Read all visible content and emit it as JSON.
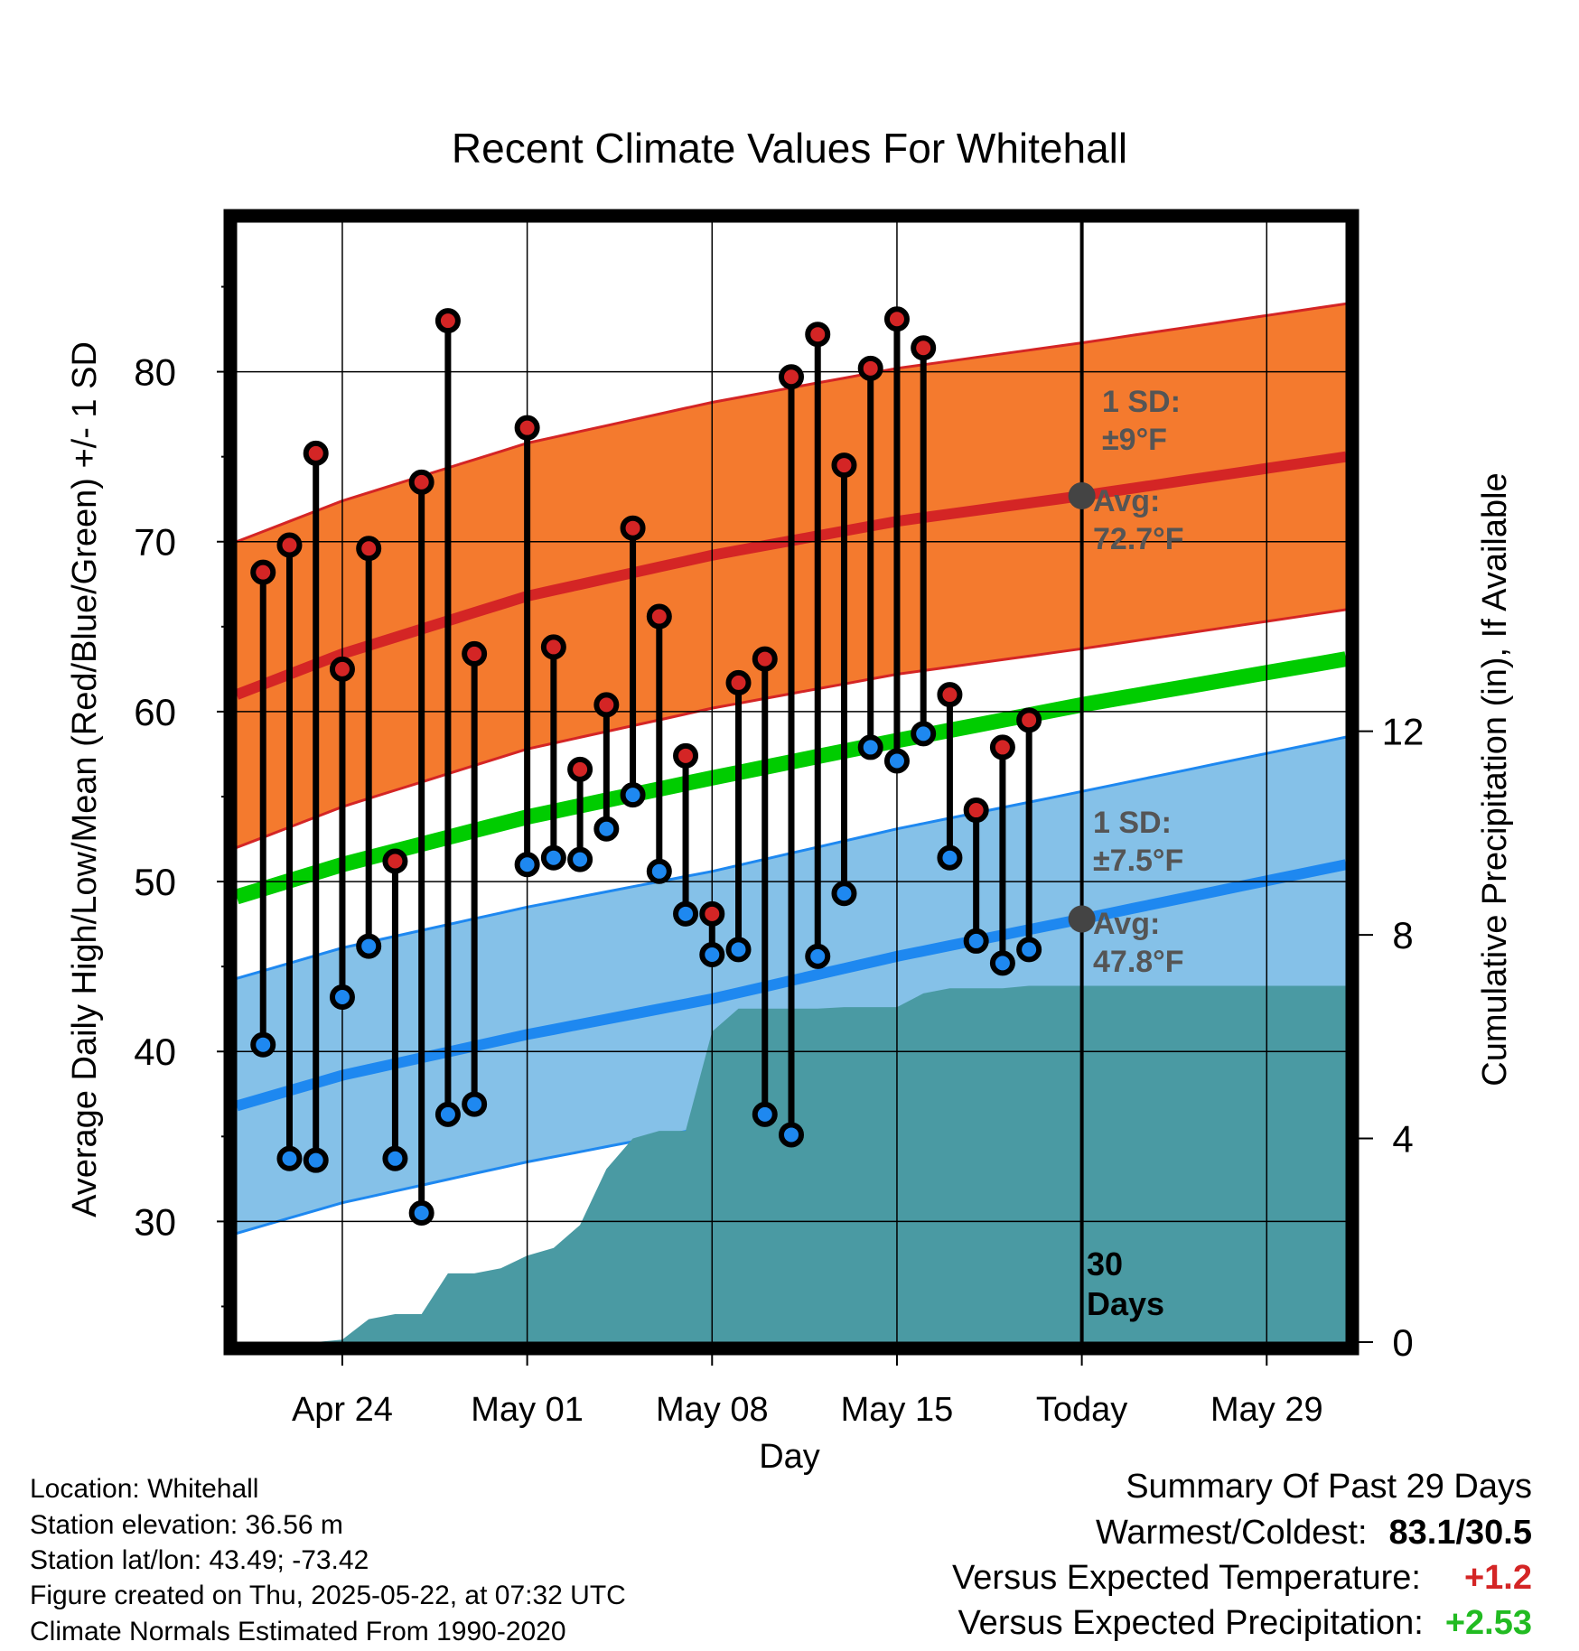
{
  "chart_data": {
    "type": "line",
    "title": "Recent Climate Values For Whitehall",
    "xlabel": "Day",
    "ylabel_left": "Average Daily High/Low/Mean (Red/Blue/Green) +/- 1 SD",
    "ylabel_right": "Cumulative Precipitation (in), If Available",
    "x_tick_labels": [
      "Apr 24",
      "May 01",
      "May 08",
      "May 15",
      "Today",
      "May 29"
    ],
    "y_ticks_left": [
      "30",
      "40",
      "50",
      "60",
      "70",
      "80"
    ],
    "y_ticks_right": [
      "0",
      "4",
      "8",
      "12"
    ],
    "ylim_left": [
      22.9,
      88.8
    ],
    "ylim_right": [
      0,
      22
    ],
    "x_start_date": "2025-04-20",
    "x_end_date": "2025-06-01",
    "today": "2025-05-22",
    "grid": true,
    "daily_high": [
      {
        "date": "2025-04-21",
        "value": 68.2
      },
      {
        "date": "2025-04-22",
        "value": 69.8
      },
      {
        "date": "2025-04-23",
        "value": 75.2
      },
      {
        "date": "2025-04-24",
        "value": 62.5
      },
      {
        "date": "2025-04-25",
        "value": 69.6
      },
      {
        "date": "2025-04-26",
        "value": 51.2
      },
      {
        "date": "2025-04-27",
        "value": 73.5
      },
      {
        "date": "2025-04-28",
        "value": 83.0
      },
      {
        "date": "2025-04-29",
        "value": 63.4
      },
      {
        "date": "2025-05-01",
        "value": 76.7
      },
      {
        "date": "2025-05-02",
        "value": 63.8
      },
      {
        "date": "2025-05-03",
        "value": 56.6
      },
      {
        "date": "2025-05-04",
        "value": 60.4
      },
      {
        "date": "2025-05-05",
        "value": 70.8
      },
      {
        "date": "2025-05-06",
        "value": 65.6
      },
      {
        "date": "2025-05-07",
        "value": 57.4
      },
      {
        "date": "2025-05-08",
        "value": 48.1
      },
      {
        "date": "2025-05-09",
        "value": 61.7
      },
      {
        "date": "2025-05-10",
        "value": 63.1
      },
      {
        "date": "2025-05-11",
        "value": 79.7
      },
      {
        "date": "2025-05-12",
        "value": 82.2
      },
      {
        "date": "2025-05-13",
        "value": 74.5
      },
      {
        "date": "2025-05-14",
        "value": 80.2
      },
      {
        "date": "2025-05-15",
        "value": 83.1
      },
      {
        "date": "2025-05-16",
        "value": 81.4
      },
      {
        "date": "2025-05-17",
        "value": 61.0
      },
      {
        "date": "2025-05-18",
        "value": 54.2
      },
      {
        "date": "2025-05-19",
        "value": 57.9
      },
      {
        "date": "2025-05-20",
        "value": 59.5
      }
    ],
    "daily_low": [
      {
        "date": "2025-04-21",
        "value": 40.4
      },
      {
        "date": "2025-04-22",
        "value": 33.7
      },
      {
        "date": "2025-04-23",
        "value": 33.6
      },
      {
        "date": "2025-04-24",
        "value": 43.2
      },
      {
        "date": "2025-04-25",
        "value": 46.2
      },
      {
        "date": "2025-04-26",
        "value": 33.7
      },
      {
        "date": "2025-04-27",
        "value": 30.5
      },
      {
        "date": "2025-04-28",
        "value": 36.3
      },
      {
        "date": "2025-04-29",
        "value": 36.9
      },
      {
        "date": "2025-05-01",
        "value": 51.0
      },
      {
        "date": "2025-05-02",
        "value": 51.4
      },
      {
        "date": "2025-05-03",
        "value": 51.3
      },
      {
        "date": "2025-05-04",
        "value": 53.1
      },
      {
        "date": "2025-05-05",
        "value": 55.1
      },
      {
        "date": "2025-05-06",
        "value": 50.6
      },
      {
        "date": "2025-05-07",
        "value": 48.1
      },
      {
        "date": "2025-05-08",
        "value": 45.7
      },
      {
        "date": "2025-05-09",
        "value": 46.0
      },
      {
        "date": "2025-05-10",
        "value": 36.3
      },
      {
        "date": "2025-05-11",
        "value": 35.1
      },
      {
        "date": "2025-05-12",
        "value": 45.6
      },
      {
        "date": "2025-05-13",
        "value": 49.3
      },
      {
        "date": "2025-05-14",
        "value": 57.9
      },
      {
        "date": "2025-05-15",
        "value": 57.1
      },
      {
        "date": "2025-05-16",
        "value": 58.7
      },
      {
        "date": "2025-05-17",
        "value": 51.4
      },
      {
        "date": "2025-05-18",
        "value": 46.5
      },
      {
        "date": "2025-05-19",
        "value": 45.2
      },
      {
        "date": "2025-05-20",
        "value": 46.0
      }
    ],
    "normal_high": {
      "x": [
        "2025-04-20",
        "2025-04-24",
        "2025-05-01",
        "2025-05-08",
        "2025-05-15",
        "2025-05-22",
        "2025-06-01"
      ],
      "y": [
        61.0,
        63.4,
        66.8,
        69.2,
        71.2,
        72.7,
        75.0
      ]
    },
    "normal_high_sd": 9,
    "normal_mean": {
      "x": [
        "2025-04-20",
        "2025-04-24",
        "2025-05-01",
        "2025-05-08",
        "2025-05-15",
        "2025-05-22",
        "2025-06-01"
      ],
      "y": [
        49.1,
        51.0,
        53.8,
        56.1,
        58.3,
        60.4,
        63.1
      ]
    },
    "normal_low": {
      "x": [
        "2025-04-20",
        "2025-04-24",
        "2025-05-01",
        "2025-05-08",
        "2025-05-15",
        "2025-05-22",
        "2025-06-01"
      ],
      "y": [
        36.8,
        38.6,
        41.0,
        43.1,
        45.6,
        47.8,
        51.0
      ]
    },
    "normal_low_sd": 7.5,
    "cumulative_precip": [
      {
        "date": "2025-04-20",
        "value": 0
      },
      {
        "date": "2025-04-22",
        "value": 0
      },
      {
        "date": "2025-04-23",
        "value": 0
      },
      {
        "date": "2025-04-24",
        "value": 0.05
      },
      {
        "date": "2025-04-25",
        "value": 0.45
      },
      {
        "date": "2025-04-26",
        "value": 0.55
      },
      {
        "date": "2025-04-27",
        "value": 0.55
      },
      {
        "date": "2025-04-28",
        "value": 1.35
      },
      {
        "date": "2025-04-29",
        "value": 1.35
      },
      {
        "date": "2025-04-30",
        "value": 1.45
      },
      {
        "date": "2025-05-01",
        "value": 1.7
      },
      {
        "date": "2025-05-02",
        "value": 1.85
      },
      {
        "date": "2025-05-03",
        "value": 2.3
      },
      {
        "date": "2025-05-04",
        "value": 3.4
      },
      {
        "date": "2025-05-05",
        "value": 4.0
      },
      {
        "date": "2025-05-06",
        "value": 4.15
      },
      {
        "date": "2025-05-07",
        "value": 4.15
      },
      {
        "date": "2025-05-08",
        "value": 6.1
      },
      {
        "date": "2025-05-09",
        "value": 6.55
      },
      {
        "date": "2025-05-10",
        "value": 6.55
      },
      {
        "date": "2025-05-11",
        "value": 6.55
      },
      {
        "date": "2025-05-12",
        "value": 6.55
      },
      {
        "date": "2025-05-13",
        "value": 6.58
      },
      {
        "date": "2025-05-14",
        "value": 6.58
      },
      {
        "date": "2025-05-15",
        "value": 6.58
      },
      {
        "date": "2025-05-16",
        "value": 6.85
      },
      {
        "date": "2025-05-17",
        "value": 6.95
      },
      {
        "date": "2025-05-18",
        "value": 6.95
      },
      {
        "date": "2025-05-19",
        "value": 6.95
      },
      {
        "date": "2025-05-20",
        "value": 7.0
      },
      {
        "date": "2025-05-22",
        "value": 7.0
      },
      {
        "date": "2025-06-01",
        "value": 7.0
      }
    ],
    "annotations": {
      "high_sd_label_line1": "1 SD:",
      "high_sd_label_line2": "±9°F",
      "high_avg_label_line1": "Avg:",
      "high_avg_label_line2": "72.7°F",
      "low_sd_label_line1": "1 SD:",
      "low_sd_label_line2": "±7.5°F",
      "low_avg_label_line1": "Avg:",
      "low_avg_label_line2": "47.8°F",
      "days_label_line1": "30",
      "days_label_line2": "Days"
    },
    "colors": {
      "high_band": "#f47a2e",
      "high_line": "#d42525",
      "low_band": "#85c1e8",
      "low_line": "#1e88f0",
      "mean_line": "#00cc00",
      "precip": "#4a9aa3",
      "high_marker": "#d42525",
      "low_marker": "#1e88f0",
      "annotation_text": "#555555",
      "avg_dot": "#444444"
    }
  },
  "info": {
    "location": "Location: Whitehall",
    "elevation": "Station elevation: 36.56 m",
    "latlon": "Station lat/lon: 43.49; -73.42",
    "created": "Figure created on Thu, 2025-05-22, at 07:32 UTC",
    "normals": "Climate Normals Estimated From 1990-2020"
  },
  "summary": {
    "title": "Summary Of Past 29 Days",
    "warmest_coldest_label": "Warmest/Coldest:",
    "warmest_coldest_value": "83.1/30.5",
    "vs_temp_label": "Versus Expected Temperature:",
    "vs_temp_value": "+1.2",
    "vs_temp_color": "#d42525",
    "vs_precip_label": "Versus Expected Precipitation:",
    "vs_precip_value": "+2.53",
    "vs_precip_color": "#22bb22"
  }
}
